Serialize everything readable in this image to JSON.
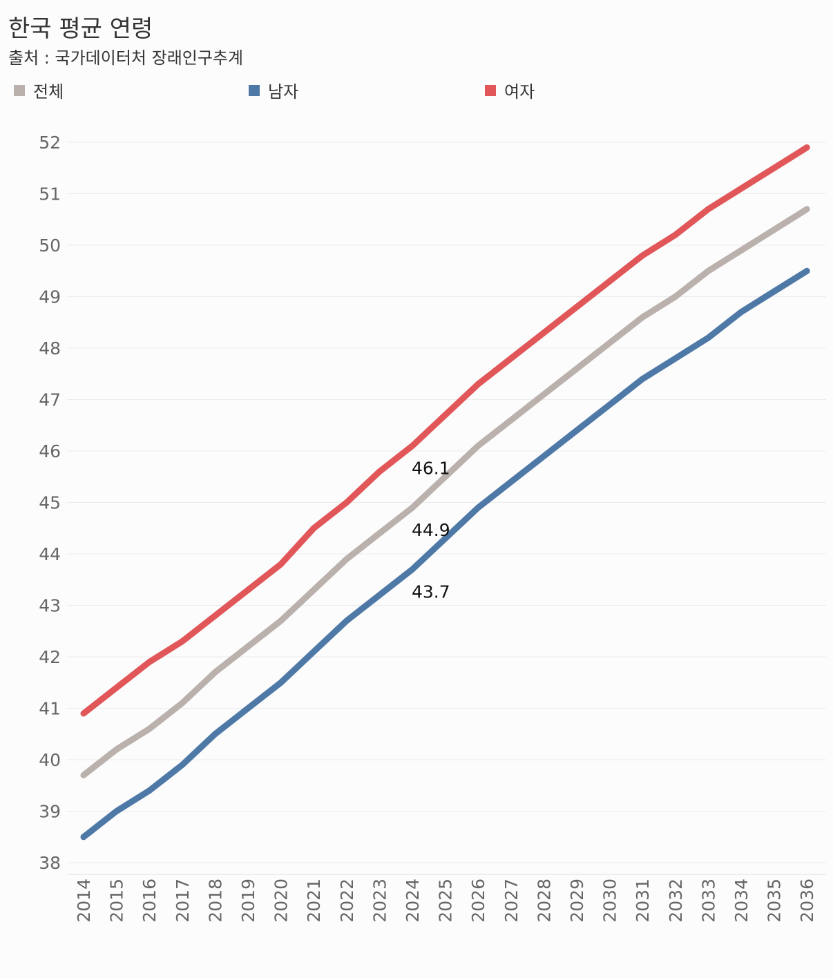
{
  "title": "한국 평균 연령",
  "subtitle": "출처 : 국가데이터처 장래인구추계",
  "legend": [
    {
      "label": "전체",
      "color": "#bab0ac"
    },
    {
      "label": "남자",
      "color": "#4e79a7"
    },
    {
      "label": "여자",
      "color": "#e15759"
    }
  ],
  "chart_data": {
    "type": "line",
    "title": "한국 평균 연령",
    "subtitle": "출처 : 국가데이터처 장래인구추계",
    "xlabel": "",
    "ylabel": "",
    "categories": [
      "2014",
      "2015",
      "2016",
      "2017",
      "2018",
      "2019",
      "2020",
      "2021",
      "2022",
      "2023",
      "2024",
      "2025",
      "2026",
      "2027",
      "2028",
      "2029",
      "2030",
      "2031",
      "2032",
      "2033",
      "2034",
      "2035",
      "2036"
    ],
    "ylim": [
      38,
      52
    ],
    "yticks": [
      38,
      39,
      40,
      41,
      42,
      43,
      44,
      45,
      46,
      47,
      48,
      49,
      50,
      51,
      52
    ],
    "grid": true,
    "legend_position": "top",
    "series": [
      {
        "name": "전체",
        "color": "#bab0ac",
        "values": [
          39.7,
          40.2,
          40.6,
          41.1,
          41.7,
          42.2,
          42.7,
          43.3,
          43.9,
          44.4,
          44.9,
          45.5,
          46.1,
          46.6,
          47.1,
          47.6,
          48.1,
          48.6,
          49.0,
          49.5,
          49.9,
          50.3,
          50.7
        ]
      },
      {
        "name": "남자",
        "color": "#4e79a7",
        "values": [
          38.5,
          39.0,
          39.4,
          39.9,
          40.5,
          41.0,
          41.5,
          42.1,
          42.7,
          43.2,
          43.7,
          44.3,
          44.9,
          45.4,
          45.9,
          46.4,
          46.9,
          47.4,
          47.8,
          48.2,
          48.7,
          49.1,
          49.5
        ]
      },
      {
        "name": "여자",
        "color": "#e15759",
        "values": [
          40.9,
          41.4,
          41.9,
          42.3,
          42.8,
          43.3,
          43.8,
          44.5,
          45.0,
          45.6,
          46.1,
          46.7,
          47.3,
          47.8,
          48.3,
          48.8,
          49.3,
          49.8,
          50.2,
          50.7,
          51.1,
          51.5,
          51.9
        ]
      }
    ],
    "annotations": [
      {
        "x": "2024",
        "series": "여자",
        "text": "46.1"
      },
      {
        "x": "2024",
        "series": "전체",
        "text": "44.9"
      },
      {
        "x": "2024",
        "series": "남자",
        "text": "43.7"
      }
    ]
  }
}
